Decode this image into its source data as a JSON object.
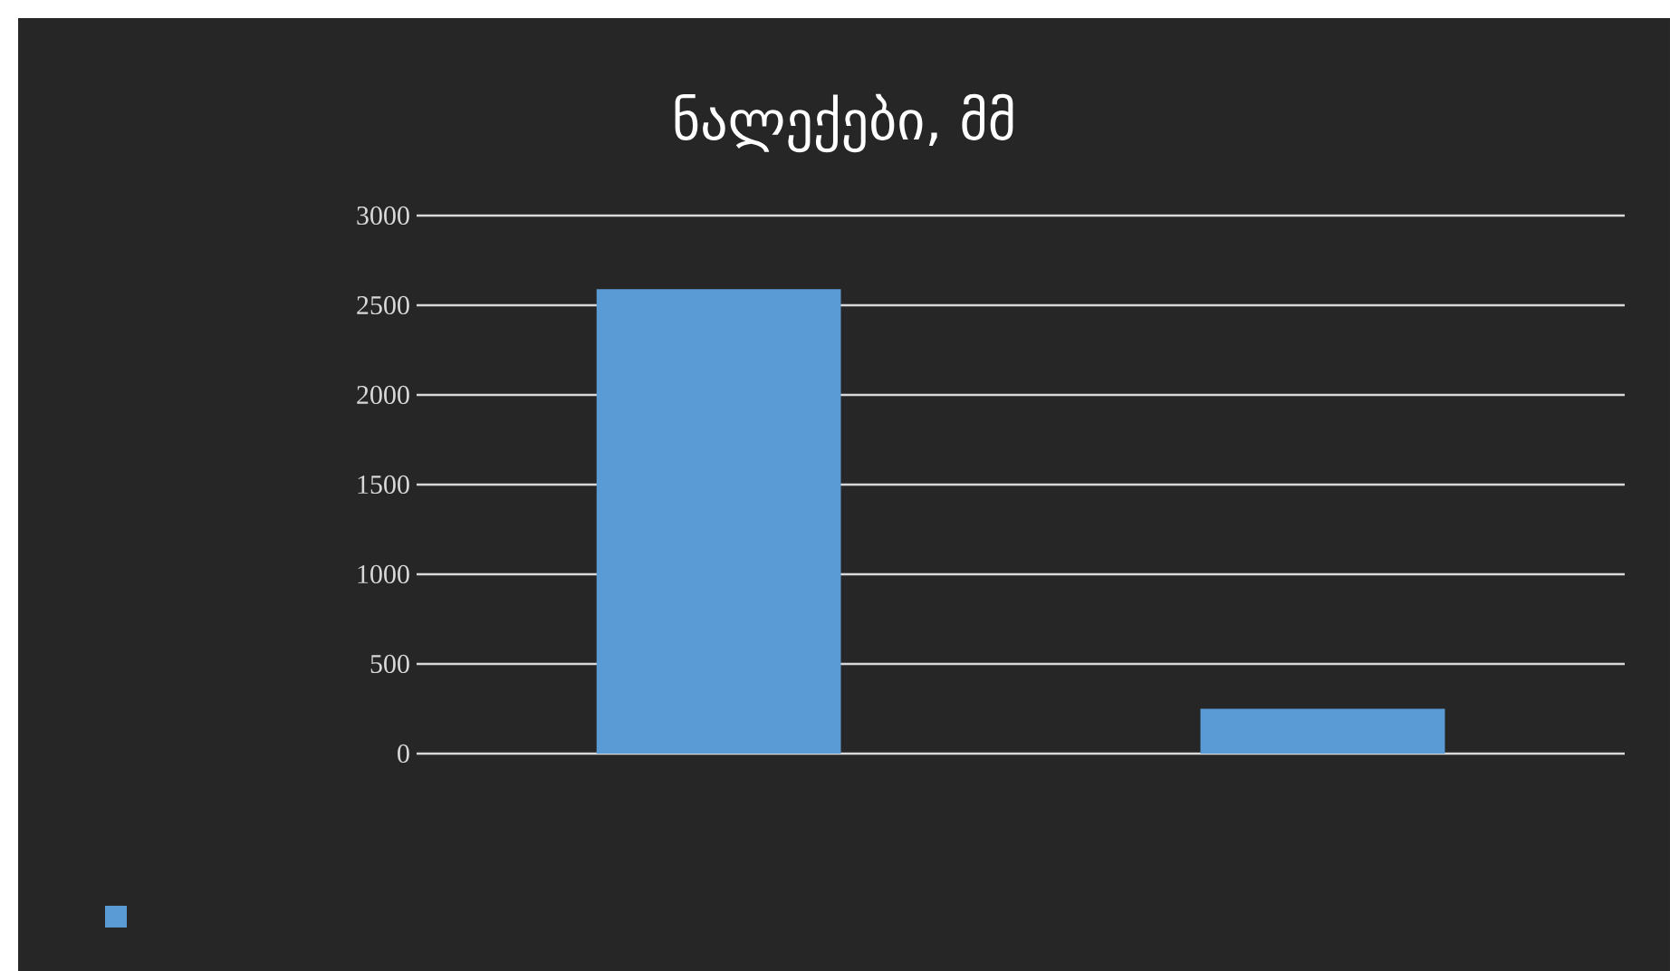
{
  "chart_data": {
    "type": "bar",
    "title": "ნალექები, მმ",
    "categories": [
      null,
      null
    ],
    "values": [
      2590,
      250
    ],
    "color": "#5b9bd5",
    "ylim": [
      0,
      3000
    ],
    "yticks": [
      0,
      500,
      1000,
      1500,
      2000,
      2500,
      3000
    ],
    "grid": "y"
  }
}
